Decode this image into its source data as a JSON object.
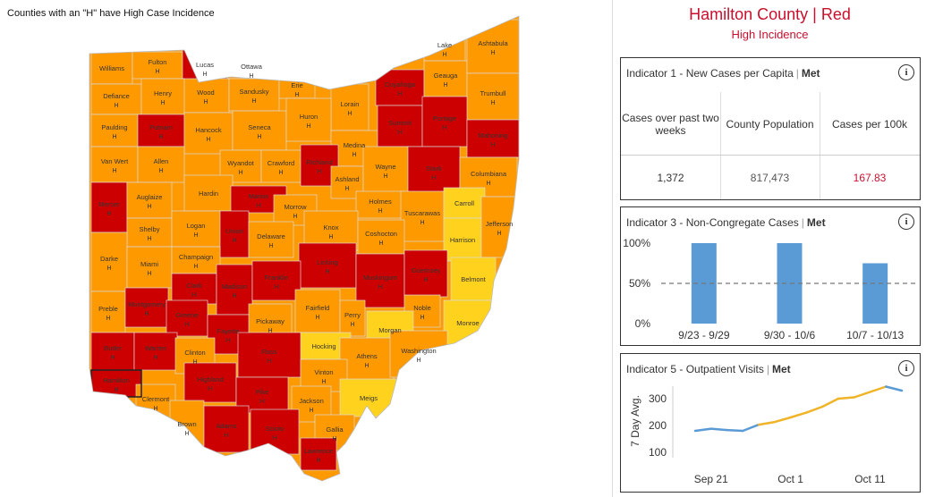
{
  "map": {
    "note": "Counties with an \"H\" have High Case Incidence",
    "h_marker": "H",
    "colors": {
      "red": "#cc0000",
      "orange": "#ff9900",
      "yellow": "#ffd21e",
      "border": "#d9d9d9"
    },
    "counties": [
      {
        "name": "Williams",
        "level": "orange",
        "h": false
      },
      {
        "name": "Fulton",
        "level": "orange",
        "h": true
      },
      {
        "name": "Lucas",
        "level": "red",
        "h": true
      },
      {
        "name": "Ottawa",
        "level": "orange",
        "h": true
      },
      {
        "name": "Wood",
        "level": "orange",
        "h": true
      },
      {
        "name": "Sandusky",
        "level": "orange",
        "h": true
      },
      {
        "name": "Erie",
        "level": "orange",
        "h": true
      },
      {
        "name": "Lorain",
        "level": "orange",
        "h": true
      },
      {
        "name": "Cuyahoga",
        "level": "red",
        "h": true
      },
      {
        "name": "Lake",
        "level": "orange",
        "h": true
      },
      {
        "name": "Geauga",
        "level": "orange",
        "h": true
      },
      {
        "name": "Ashtabula",
        "level": "orange",
        "h": true
      },
      {
        "name": "Trumbull",
        "level": "orange",
        "h": true
      },
      {
        "name": "Defiance",
        "level": "orange",
        "h": true
      },
      {
        "name": "Henry",
        "level": "orange",
        "h": true
      },
      {
        "name": "Paulding",
        "level": "orange",
        "h": true
      },
      {
        "name": "Putnam",
        "level": "red",
        "h": true
      },
      {
        "name": "Hancock",
        "level": "orange",
        "h": true
      },
      {
        "name": "Seneca",
        "level": "orange",
        "h": true
      },
      {
        "name": "Huron",
        "level": "orange",
        "h": true
      },
      {
        "name": "Medina",
        "level": "orange",
        "h": true
      },
      {
        "name": "Summit",
        "level": "red",
        "h": true
      },
      {
        "name": "Portage",
        "level": "red",
        "h": true
      },
      {
        "name": "Mahoning",
        "level": "red",
        "h": true
      },
      {
        "name": "Van Wert",
        "level": "orange",
        "h": true
      },
      {
        "name": "Allen",
        "level": "orange",
        "h": true
      },
      {
        "name": "Wyandot",
        "level": "orange",
        "h": true
      },
      {
        "name": "Crawford",
        "level": "orange",
        "h": true
      },
      {
        "name": "Richland",
        "level": "red",
        "h": true
      },
      {
        "name": "Ashland",
        "level": "orange",
        "h": true
      },
      {
        "name": "Wayne",
        "level": "orange",
        "h": true
      },
      {
        "name": "Stark",
        "level": "red",
        "h": true
      },
      {
        "name": "Columbiana",
        "level": "orange",
        "h": true
      },
      {
        "name": "Hardin",
        "level": "orange",
        "h": false
      },
      {
        "name": "Mercer",
        "level": "red",
        "h": true
      },
      {
        "name": "Auglaize",
        "level": "orange",
        "h": true
      },
      {
        "name": "Marion",
        "level": "red",
        "h": true
      },
      {
        "name": "Morrow",
        "level": "orange",
        "h": true
      },
      {
        "name": "Holmes",
        "level": "orange",
        "h": true
      },
      {
        "name": "Tuscarawas",
        "level": "orange",
        "h": true
      },
      {
        "name": "Carroll",
        "level": "yellow",
        "h": false
      },
      {
        "name": "Shelby",
        "level": "orange",
        "h": true
      },
      {
        "name": "Logan",
        "level": "orange",
        "h": true
      },
      {
        "name": "Union",
        "level": "red",
        "h": true
      },
      {
        "name": "Delaware",
        "level": "orange",
        "h": true
      },
      {
        "name": "Knox",
        "level": "orange",
        "h": true
      },
      {
        "name": "Coshocton",
        "level": "orange",
        "h": true
      },
      {
        "name": "Harrison",
        "level": "yellow",
        "h": false
      },
      {
        "name": "Jefferson",
        "level": "orange",
        "h": true
      },
      {
        "name": "Darke",
        "level": "orange",
        "h": true
      },
      {
        "name": "Miami",
        "level": "orange",
        "h": true
      },
      {
        "name": "Champaign",
        "level": "orange",
        "h": true
      },
      {
        "name": "Licking",
        "level": "red",
        "h": true
      },
      {
        "name": "Muskingum",
        "level": "red",
        "h": true
      },
      {
        "name": "Guernsey",
        "level": "red",
        "h": true
      },
      {
        "name": "Belmont",
        "level": "yellow",
        "h": false
      },
      {
        "name": "Clark",
        "level": "red",
        "h": true
      },
      {
        "name": "Madison",
        "level": "red",
        "h": true
      },
      {
        "name": "Franklin",
        "level": "red",
        "h": true
      },
      {
        "name": "Preble",
        "level": "orange",
        "h": true
      },
      {
        "name": "Montgomery",
        "level": "red",
        "h": true
      },
      {
        "name": "Greene",
        "level": "red",
        "h": true
      },
      {
        "name": "Fairfield",
        "level": "orange",
        "h": true
      },
      {
        "name": "Perry",
        "level": "orange",
        "h": true
      },
      {
        "name": "Noble",
        "level": "orange",
        "h": true
      },
      {
        "name": "Monroe",
        "level": "yellow",
        "h": false
      },
      {
        "name": "Pickaway",
        "level": "orange",
        "h": true
      },
      {
        "name": "Fayette",
        "level": "red",
        "h": true
      },
      {
        "name": "Morgan",
        "level": "yellow",
        "h": false
      },
      {
        "name": "Hocking",
        "level": "yellow",
        "h": false
      },
      {
        "name": "Butler",
        "level": "red",
        "h": true
      },
      {
        "name": "Warren",
        "level": "red",
        "h": true
      },
      {
        "name": "Clinton",
        "level": "orange",
        "h": true
      },
      {
        "name": "Ross",
        "level": "red",
        "h": true
      },
      {
        "name": "Athens",
        "level": "orange",
        "h": true
      },
      {
        "name": "Washington",
        "level": "orange",
        "h": true
      },
      {
        "name": "Hamilton",
        "level": "red",
        "h": true
      },
      {
        "name": "Highland",
        "level": "red",
        "h": true
      },
      {
        "name": "Vinton",
        "level": "orange",
        "h": true
      },
      {
        "name": "Clermont",
        "level": "orange",
        "h": true
      },
      {
        "name": "Pike",
        "level": "red",
        "h": true
      },
      {
        "name": "Jackson",
        "level": "orange",
        "h": true
      },
      {
        "name": "Meigs",
        "level": "yellow",
        "h": false
      },
      {
        "name": "Brown",
        "level": "orange",
        "h": true
      },
      {
        "name": "Adams",
        "level": "red",
        "h": true
      },
      {
        "name": "Scioto",
        "level": "red",
        "h": true
      },
      {
        "name": "Gallia",
        "level": "orange",
        "h": true
      },
      {
        "name": "Lawrence",
        "level": "red",
        "h": true
      }
    ]
  },
  "header": {
    "title": "Hamilton County | Red",
    "subtitle": "High Incidence"
  },
  "indicator1": {
    "title": "Indicator 1 - New Cases per Capita",
    "status": "Met",
    "info_icon": "info-icon",
    "col1_header": "Cases over past two weeks",
    "col2_header": "County Population",
    "col3_header": "Cases per 100k",
    "col1_value": "1,372",
    "col2_value": "817,473",
    "col3_value": "167.83",
    "highlight_color": "#c8102e"
  },
  "indicator3": {
    "title": "Indicator 3 - Non-Congregate Cases",
    "status": "Met",
    "info_icon": "info-icon"
  },
  "indicator5": {
    "title": "Indicator 5 - Outpatient Visits",
    "status": "Met",
    "info_icon": "info-icon"
  },
  "chart_data": [
    {
      "type": "bar",
      "categories": [
        "9/23 - 9/29",
        "9/30 - 10/6",
        "10/7 - 10/13"
      ],
      "values": [
        100,
        100,
        75
      ],
      "yticks": [
        "0%",
        "50%",
        "100%"
      ],
      "ylim": [
        0,
        100
      ],
      "reference_line": 50,
      "bar_color": "#5b9bd5"
    },
    {
      "type": "line",
      "ylabel": "7 Day Avg.",
      "yticks": [
        100,
        200,
        300
      ],
      "ylim": [
        100,
        300
      ],
      "xticks": [
        "Sep 21",
        "Oct 1",
        "Oct 11"
      ],
      "x_days": [
        0,
        2,
        4,
        6,
        8,
        10,
        12,
        14,
        16,
        18,
        20,
        22,
        24,
        26
      ],
      "values": [
        180,
        188,
        183,
        180,
        203,
        213,
        230,
        248,
        270,
        300,
        305,
        325,
        345,
        330
      ],
      "segment_colors": [
        "#5b9bd5",
        "#5b9bd5",
        "#5b9bd5",
        "#5b9bd5",
        "#f0b428",
        "#f0b428",
        "#f0b428",
        "#f0b428",
        "#f0b428",
        "#f0b428",
        "#f0b428",
        "#f0b428",
        "#5b9bd5"
      ]
    }
  ]
}
